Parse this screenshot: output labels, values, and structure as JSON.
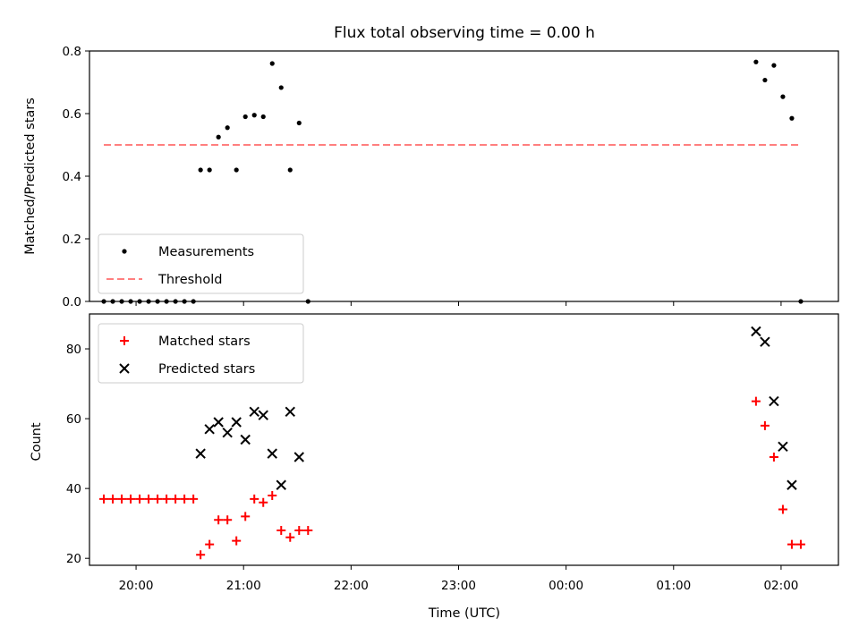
{
  "chart_data": [
    {
      "type": "scatter",
      "title": "Flux total observing time = 0.00 h",
      "xlabel": "",
      "ylabel": "Matched/Predicted stars",
      "ylim": [
        0,
        0.8
      ],
      "yticks": [
        "0.0",
        "0.2",
        "0.4",
        "0.6",
        "0.8"
      ],
      "xlim": [
        "19:34",
        "02:32"
      ],
      "grid": false,
      "legend": {
        "placement": "lower-left",
        "entries": [
          "Measurements",
          "Threshold"
        ]
      },
      "series": [
        {
          "name": "Measurements",
          "color": "#000000",
          "marker": "dot",
          "points": [
            {
              "x": "19:42",
              "y": 0.0
            },
            {
              "x": "19:47",
              "y": 0.0
            },
            {
              "x": "19:52",
              "y": 0.0
            },
            {
              "x": "19:57",
              "y": 0.0
            },
            {
              "x": "20:02",
              "y": 0.0
            },
            {
              "x": "20:07",
              "y": 0.0
            },
            {
              "x": "20:12",
              "y": 0.0
            },
            {
              "x": "20:17",
              "y": 0.0
            },
            {
              "x": "20:22",
              "y": 0.0
            },
            {
              "x": "20:27",
              "y": 0.0
            },
            {
              "x": "20:32",
              "y": 0.0
            },
            {
              "x": "20:36",
              "y": 0.42
            },
            {
              "x": "20:41",
              "y": 0.42
            },
            {
              "x": "20:46",
              "y": 0.525
            },
            {
              "x": "20:51",
              "y": 0.555
            },
            {
              "x": "20:56",
              "y": 0.42
            },
            {
              "x": "21:01",
              "y": 0.59
            },
            {
              "x": "21:06",
              "y": 0.595
            },
            {
              "x": "21:11",
              "y": 0.59
            },
            {
              "x": "21:16",
              "y": 0.76
            },
            {
              "x": "21:21",
              "y": 0.683
            },
            {
              "x": "21:26",
              "y": 0.42
            },
            {
              "x": "21:31",
              "y": 0.57
            },
            {
              "x": "21:36",
              "y": 0.0
            },
            {
              "x": "01:46",
              "y": 0.765
            },
            {
              "x": "01:51",
              "y": 0.707
            },
            {
              "x": "01:56",
              "y": 0.754
            },
            {
              "x": "02:01",
              "y": 0.654
            },
            {
              "x": "02:06",
              "y": 0.585
            },
            {
              "x": "02:11",
              "y": 0.0
            }
          ]
        },
        {
          "name": "Threshold",
          "color": "#ff7f7f",
          "style": "dashed",
          "points": [
            {
              "x": "19:42",
              "y": 0.5
            },
            {
              "x": "02:11",
              "y": 0.5
            }
          ]
        }
      ]
    },
    {
      "type": "scatter",
      "title": "",
      "xlabel": "Time (UTC)",
      "ylabel": "Count",
      "ylim": [
        18,
        90
      ],
      "yticks": [
        "20",
        "40",
        "60",
        "80"
      ],
      "xlim": [
        "19:34",
        "02:32"
      ],
      "xticks": [
        "20:00",
        "21:00",
        "22:00",
        "23:00",
        "00:00",
        "01:00",
        "02:00"
      ],
      "grid": false,
      "legend": {
        "placement": "upper-left",
        "entries": [
          "Matched stars",
          "Predicted stars"
        ]
      },
      "series": [
        {
          "name": "Matched stars",
          "color": "#ff0000",
          "marker": "plus",
          "points": [
            {
              "x": "19:42",
              "y": 37
            },
            {
              "x": "19:47",
              "y": 37
            },
            {
              "x": "19:52",
              "y": 37
            },
            {
              "x": "19:57",
              "y": 37
            },
            {
              "x": "20:02",
              "y": 37
            },
            {
              "x": "20:07",
              "y": 37
            },
            {
              "x": "20:12",
              "y": 37
            },
            {
              "x": "20:17",
              "y": 37
            },
            {
              "x": "20:22",
              "y": 37
            },
            {
              "x": "20:27",
              "y": 37
            },
            {
              "x": "20:32",
              "y": 37
            },
            {
              "x": "20:36",
              "y": 21
            },
            {
              "x": "20:41",
              "y": 24
            },
            {
              "x": "20:46",
              "y": 31
            },
            {
              "x": "20:51",
              "y": 31
            },
            {
              "x": "20:56",
              "y": 25
            },
            {
              "x": "21:01",
              "y": 32
            },
            {
              "x": "21:06",
              "y": 37
            },
            {
              "x": "21:11",
              "y": 36
            },
            {
              "x": "21:16",
              "y": 38
            },
            {
              "x": "21:21",
              "y": 28
            },
            {
              "x": "21:26",
              "y": 26
            },
            {
              "x": "21:31",
              "y": 28
            },
            {
              "x": "21:36",
              "y": 28
            },
            {
              "x": "01:46",
              "y": 65
            },
            {
              "x": "01:51",
              "y": 58
            },
            {
              "x": "01:56",
              "y": 49
            },
            {
              "x": "02:01",
              "y": 34
            },
            {
              "x": "02:06",
              "y": 24
            },
            {
              "x": "02:11",
              "y": 24
            }
          ]
        },
        {
          "name": "Predicted stars",
          "color": "#000000",
          "marker": "x",
          "points": [
            {
              "x": "20:36",
              "y": 50
            },
            {
              "x": "20:41",
              "y": 57
            },
            {
              "x": "20:46",
              "y": 59
            },
            {
              "x": "20:51",
              "y": 56
            },
            {
              "x": "20:56",
              "y": 59
            },
            {
              "x": "21:01",
              "y": 54
            },
            {
              "x": "21:06",
              "y": 62
            },
            {
              "x": "21:11",
              "y": 61
            },
            {
              "x": "21:16",
              "y": 50
            },
            {
              "x": "21:21",
              "y": 41
            },
            {
              "x": "21:26",
              "y": 62
            },
            {
              "x": "21:31",
              "y": 49
            },
            {
              "x": "01:46",
              "y": 85
            },
            {
              "x": "01:51",
              "y": 82
            },
            {
              "x": "01:56",
              "y": 65
            },
            {
              "x": "02:01",
              "y": 52
            },
            {
              "x": "02:06",
              "y": 41
            }
          ]
        }
      ]
    }
  ]
}
